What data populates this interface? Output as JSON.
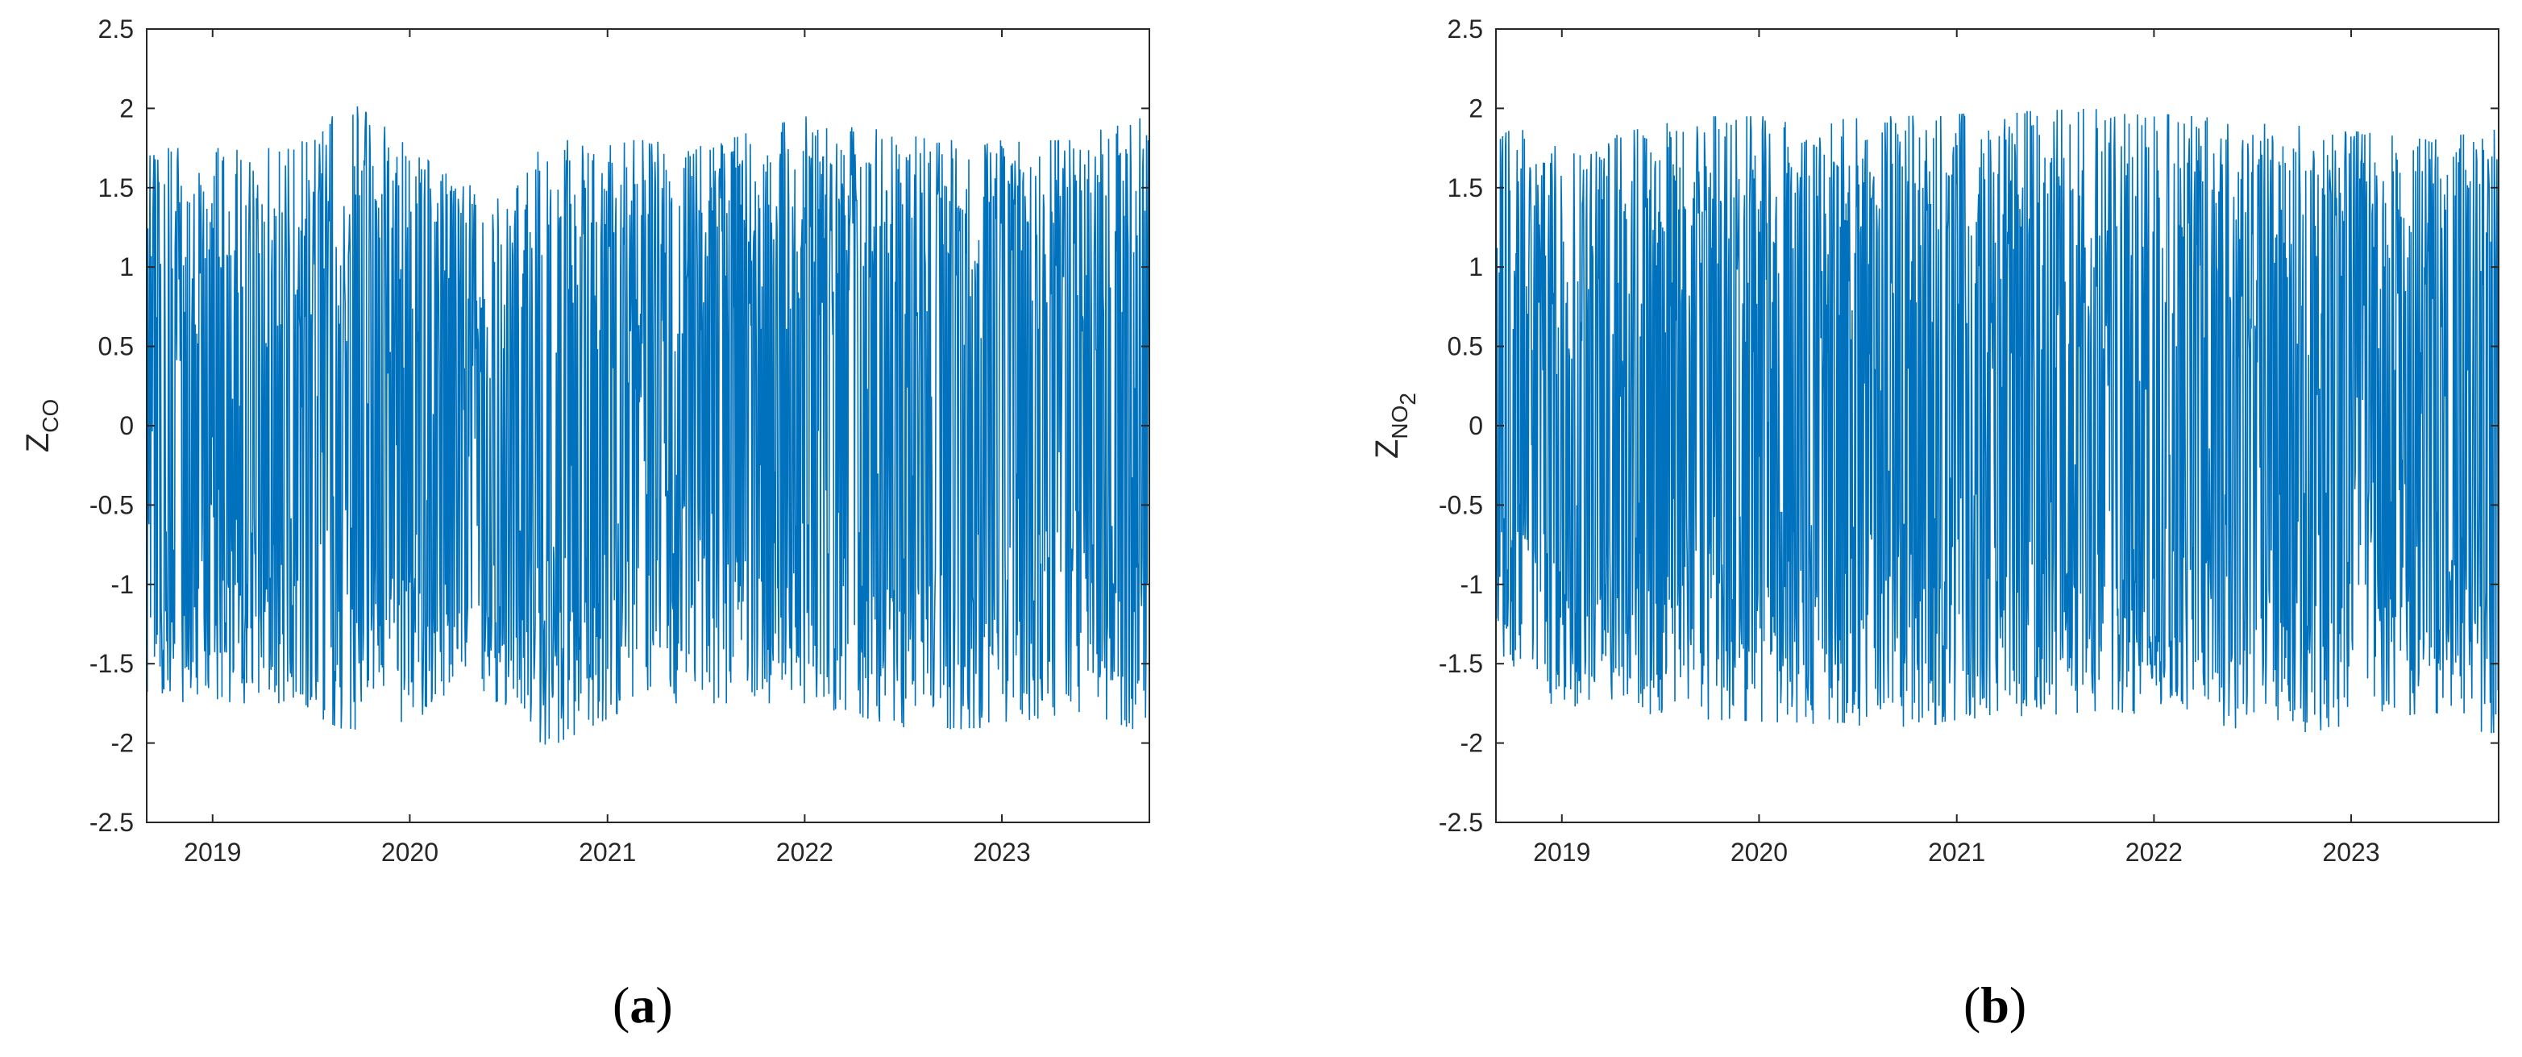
{
  "chart_data": [
    {
      "panel": "a",
      "caption_letter": "a",
      "type": "line",
      "ylabel_main": "Z",
      "ylabel_sub": "CO",
      "ylabel_sub2": "",
      "ylim": [
        -2.5,
        2.5
      ],
      "yticks": [
        "2.5",
        "2",
        "1.5",
        "1",
        "0.5",
        "0",
        "-0.5",
        "-1",
        "-1.5",
        "-2",
        "-2.5"
      ],
      "xlim": [
        "2018-09-01",
        "2023-10-01"
      ],
      "xticks": [
        "2019",
        "2020",
        "2021",
        "2022",
        "2023"
      ],
      "grid": false,
      "color": "#0072BD",
      "series": [
        {
          "x_start": "2018-09-01",
          "x_end": "2023-10-01",
          "n_points": 1800,
          "envelope": [
            {
              "x": "2018-09-01",
              "upper": 1.75,
              "lower": -1.75,
              "mean": -0.2
            },
            {
              "x": "2019-06-01",
              "upper": 1.75,
              "lower": -1.75,
              "mean": -0.2
            },
            {
              "x": "2019-09-15",
              "upper": 2.05,
              "lower": -1.95,
              "mean": -0.3
            },
            {
              "x": "2020-03-01",
              "upper": 1.6,
              "lower": -1.8,
              "mean": -0.45
            },
            {
              "x": "2020-07-01",
              "upper": 1.4,
              "lower": -1.8,
              "mean": -0.5
            },
            {
              "x": "2020-09-01",
              "upper": 1.8,
              "lower": -2.05,
              "mean": -0.4
            },
            {
              "x": "2021-03-01",
              "upper": 1.8,
              "lower": -1.75,
              "mean": -0.1
            },
            {
              "x": "2021-08-01",
              "upper": 1.8,
              "lower": -1.75,
              "mean": 0.1
            },
            {
              "x": "2022-01-01",
              "upper": 1.95,
              "lower": -1.75,
              "mean": 0.1
            },
            {
              "x": "2022-09-01",
              "upper": 1.8,
              "lower": -1.95,
              "mean": 0.05
            },
            {
              "x": "2023-06-01",
              "upper": 1.8,
              "lower": -1.8,
              "mean": 0.2
            },
            {
              "x": "2023-10-01",
              "upper": 2.05,
              "lower": -1.95,
              "mean": 0.2
            }
          ]
        }
      ]
    },
    {
      "panel": "b",
      "caption_letter": "b",
      "type": "line",
      "ylabel_main": "Z",
      "ylabel_sub": "NO",
      "ylabel_sub2": "2",
      "ylim": [
        -2.5,
        2.5
      ],
      "yticks": [
        "2.5",
        "2",
        "1.5",
        "1",
        "0.5",
        "0",
        "-0.5",
        "-1",
        "-1.5",
        "-2",
        "-2.5"
      ],
      "xlim": [
        "2018-09-01",
        "2023-10-01"
      ],
      "xticks": [
        "2019",
        "2020",
        "2021",
        "2022",
        "2023"
      ],
      "grid": false,
      "color": "#0072BD",
      "series": [
        {
          "x_start": "2018-09-01",
          "x_end": "2023-10-01",
          "n_points": 1800,
          "envelope": [
            {
              "x": "2018-09-01",
              "upper": 2.0,
              "lower": -1.4,
              "mean": 0.2
            },
            {
              "x": "2018-12-01",
              "upper": 1.75,
              "lower": -1.75,
              "mean": 0.0
            },
            {
              "x": "2019-09-15",
              "upper": 1.95,
              "lower": -1.85,
              "mean": -0.1
            },
            {
              "x": "2020-09-15",
              "upper": 1.95,
              "lower": -1.9,
              "mean": -0.1
            },
            {
              "x": "2021-09-15",
              "upper": 2.0,
              "lower": -1.8,
              "mean": -0.1
            },
            {
              "x": "2022-09-15",
              "upper": 1.9,
              "lower": -1.95,
              "mean": -0.1
            },
            {
              "x": "2023-06-01",
              "upper": 1.8,
              "lower": -1.8,
              "mean": -0.1
            },
            {
              "x": "2023-10-01",
              "upper": 1.9,
              "lower": -2.0,
              "mean": -0.1
            }
          ]
        }
      ]
    }
  ]
}
